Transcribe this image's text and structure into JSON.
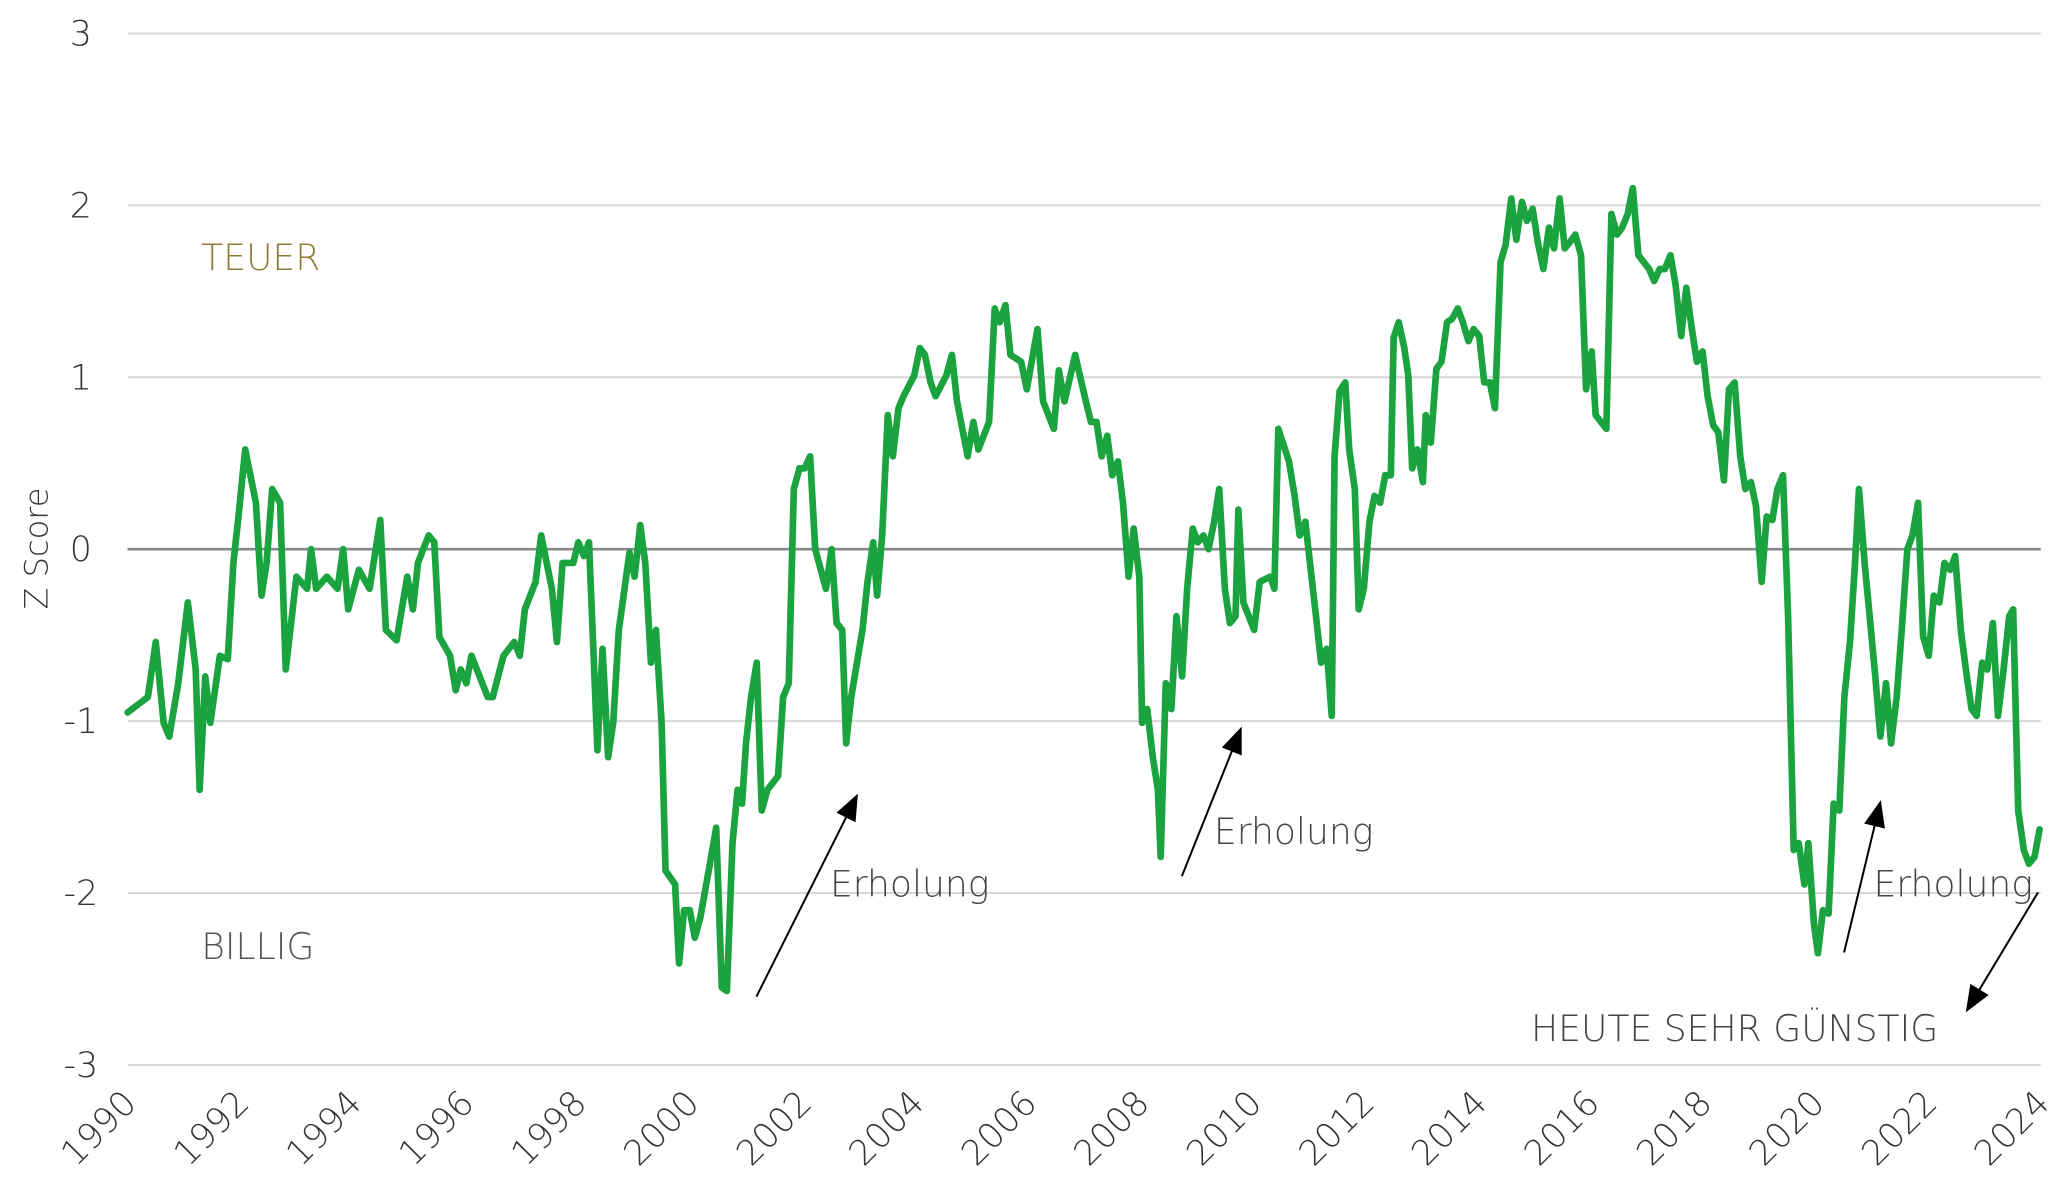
{
  "chart_data": {
    "type": "line",
    "y_label": "Z Score",
    "color": "#1aa33f",
    "annotations": [
      "TEUER",
      "BILLIG",
      "Erholung",
      "Erholung",
      "Erholung",
      "HEUTE SEHR GÜNSTIG"
    ],
    "xlim": [
      1990,
      2024
    ],
    "xticks": [
      1990,
      1992,
      1994,
      1996,
      1998,
      2000,
      2002,
      2004,
      2006,
      2008,
      2010,
      2012,
      2014,
      2016,
      2018,
      2020,
      2022,
      2024
    ],
    "ylim": [
      -3,
      3
    ],
    "yticks": [
      -3,
      -2,
      -1,
      0,
      1,
      2,
      3
    ],
    "grid": true,
    "x": [
      1990.0,
      1990.36,
      1990.5,
      1990.64,
      1990.74,
      1990.9,
      1991.07,
      1991.21,
      1991.28,
      1991.38,
      1991.47,
      1991.64,
      1991.78,
      1991.88,
      1991.97,
      1992.09,
      1992.28,
      1992.38,
      1992.47,
      1992.57,
      1992.71,
      1992.81,
      1993.0,
      1993.19,
      1993.26,
      1993.35,
      1993.54,
      1993.73,
      1993.83,
      1993.92,
      1994.11,
      1994.3,
      1994.49,
      1994.59,
      1994.78,
      1994.97,
      1995.07,
      1995.16,
      1995.35,
      1995.45,
      1995.54,
      1995.73,
      1995.83,
      1995.92,
      1996.02,
      1996.11,
      1996.4,
      1996.49,
      1996.68,
      1996.87,
      1996.97,
      1997.06,
      1997.25,
      1997.35,
      1997.54,
      1997.63,
      1997.73,
      1997.92,
      1998.01,
      1998.11,
      1998.2,
      1998.35,
      1998.44,
      1998.54,
      1998.63,
      1998.73,
      1998.92,
      1999.01,
      1999.11,
      1999.2,
      1999.3,
      1999.39,
      1999.49,
      1999.56,
      1999.73,
      1999.8,
      1999.89,
      1999.99,
      2000.08,
      2000.18,
      2000.37,
      2000.46,
      2000.56,
      2000.65,
      2000.75,
      2000.84,
      2000.92,
      2000.99,
      2001.08,
      2001.18,
      2001.27,
      2001.37,
      2001.56,
      2001.65,
      2001.75,
      2001.84,
      2001.94,
      2002.03,
      2002.13,
      2002.22,
      2002.41,
      2002.51,
      2002.6,
      2002.7,
      2002.77,
      2002.86,
      2003.06,
      2003.15,
      2003.25,
      2003.32,
      2003.41,
      2003.51,
      2003.6,
      2003.7,
      2003.79,
      2003.98,
      2004.08,
      2004.17,
      2004.27,
      2004.36,
      2004.55,
      2004.65,
      2004.74,
      2004.93,
      2005.03,
      2005.12,
      2005.31,
      2005.41,
      2005.5,
      2005.6,
      2005.69,
      2005.88,
      2005.98,
      2006.17,
      2006.27,
      2006.46,
      2006.55,
      2006.65,
      2006.84,
      2007.03,
      2007.12,
      2007.22,
      2007.31,
      2007.41,
      2007.5,
      2007.6,
      2007.69,
      2007.79,
      2007.88,
      2007.98,
      2008.03,
      2008.12,
      2008.22,
      2008.31,
      2008.36,
      2008.45,
      2008.55,
      2008.64,
      2008.74,
      2008.83,
      2008.93,
      2009.02,
      2009.12,
      2009.21,
      2009.31,
      2009.4,
      2009.5,
      2009.59,
      2009.69,
      2009.74,
      2009.83,
      2010.02,
      2010.12,
      2010.31,
      2010.38,
      2010.45,
      2010.64,
      2010.74,
      2010.83,
      2010.93,
      2011.12,
      2011.21,
      2011.31,
      2011.4,
      2011.45,
      2011.54,
      2011.64,
      2011.71,
      2011.81,
      2011.88,
      2011.97,
      2012.07,
      2012.16,
      2012.26,
      2012.35,
      2012.45,
      2012.5,
      2012.59,
      2012.69,
      2012.76,
      2012.83,
      2012.92,
      2013.02,
      2013.07,
      2013.16,
      2013.26,
      2013.35,
      2013.45,
      2013.54,
      2013.64,
      2013.73,
      2013.83,
      2013.92,
      2014.02,
      2014.11,
      2014.21,
      2014.3,
      2014.4,
      2014.49,
      2014.59,
      2014.68,
      2014.78,
      2014.87,
      2014.97,
      2015.06,
      2015.16,
      2015.26,
      2015.35,
      2015.45,
      2015.54,
      2015.64,
      2015.73,
      2015.83,
      2015.92,
      2016.02,
      2016.09,
      2016.28,
      2016.37,
      2016.47,
      2016.56,
      2016.66,
      2016.75,
      2016.85,
      2017.04,
      2017.13,
      2017.23,
      2017.32,
      2017.42,
      2017.51,
      2017.61,
      2017.7,
      2017.8,
      2017.89,
      2017.99,
      2018.08,
      2018.18,
      2018.27,
      2018.37,
      2018.46,
      2018.56,
      2018.66,
      2018.75,
      2018.85,
      2018.94,
      2019.04,
      2019.13,
      2019.23,
      2019.32,
      2019.42,
      2019.51,
      2019.61,
      2019.7,
      2019.8,
      2019.87,
      2019.97,
      2020.04,
      2020.13,
      2020.23,
      2020.32,
      2020.42,
      2020.51,
      2020.61,
      2020.7,
      2020.77,
      2020.87,
      2020.96,
      2021.06,
      2021.15,
      2021.25,
      2021.34,
      2021.44,
      2021.53,
      2021.63,
      2021.72,
      2021.82,
      2021.91,
      2022.01,
      2022.1,
      2022.2,
      2022.29,
      2022.39,
      2022.48,
      2022.58,
      2022.67,
      2022.77,
      2022.86,
      2022.96,
      2023.05,
      2023.15,
      2023.24,
      2023.34,
      2023.44,
      2023.51,
      2023.6,
      2023.7,
      2023.79,
      2023.89,
      2023.98
    ],
    "values": [
      -0.95,
      -0.86,
      -0.54,
      -1.01,
      -1.09,
      -0.78,
      -0.31,
      -0.7,
      -1.4,
      -0.74,
      -1.01,
      -0.62,
      -0.64,
      -0.08,
      0.19,
      0.58,
      0.27,
      -0.27,
      -0.08,
      0.35,
      0.27,
      -0.7,
      -0.16,
      -0.23,
      0.0,
      -0.23,
      -0.16,
      -0.23,
      0.0,
      -0.35,
      -0.12,
      -0.23,
      0.17,
      -0.47,
      -0.53,
      -0.16,
      -0.35,
      -0.08,
      0.08,
      0.04,
      -0.51,
      -0.62,
      -0.82,
      -0.7,
      -0.78,
      -0.62,
      -0.86,
      -0.86,
      -0.62,
      -0.54,
      -0.62,
      -0.35,
      -0.19,
      0.08,
      -0.23,
      -0.54,
      -0.08,
      -0.08,
      0.04,
      -0.04,
      0.04,
      -1.17,
      -0.58,
      -1.21,
      -1.01,
      -0.47,
      -0.02,
      -0.16,
      0.14,
      -0.08,
      -0.66,
      -0.47,
      -1.01,
      -1.87,
      -1.95,
      -2.41,
      -2.1,
      -2.1,
      -2.26,
      -2.14,
      -1.79,
      -1.62,
      -2.55,
      -2.57,
      -1.71,
      -1.4,
      -1.48,
      -1.13,
      -0.86,
      -0.66,
      -1.52,
      -1.4,
      -1.32,
      -0.86,
      -0.78,
      0.35,
      0.47,
      0.47,
      0.54,
      0.0,
      -0.23,
      0.0,
      -0.43,
      -0.47,
      -1.13,
      -0.86,
      -0.47,
      -0.19,
      0.04,
      -0.27,
      0.08,
      0.78,
      0.54,
      0.82,
      0.89,
      1.01,
      1.17,
      1.13,
      0.97,
      0.89,
      1.01,
      1.13,
      0.86,
      0.54,
      0.74,
      0.58,
      0.74,
      1.4,
      1.32,
      1.42,
      1.13,
      1.09,
      0.93,
      1.28,
      0.86,
      0.7,
      1.04,
      0.86,
      1.13,
      0.86,
      0.74,
      0.74,
      0.54,
      0.66,
      0.43,
      0.51,
      0.27,
      -0.16,
      0.12,
      -0.16,
      -1.01,
      -0.93,
      -1.21,
      -1.4,
      -1.79,
      -0.78,
      -0.93,
      -0.39,
      -0.74,
      -0.23,
      0.12,
      0.04,
      0.08,
      0.0,
      0.16,
      0.35,
      -0.23,
      -0.43,
      -0.39,
      0.23,
      -0.31,
      -0.47,
      -0.19,
      -0.16,
      -0.23,
      0.7,
      0.51,
      0.31,
      0.08,
      0.16,
      -0.39,
      -0.66,
      -0.58,
      -0.97,
      0.54,
      0.92,
      0.97,
      0.58,
      0.35,
      -0.35,
      -0.23,
      0.16,
      0.31,
      0.27,
      0.43,
      0.43,
      1.23,
      1.32,
      1.17,
      1.01,
      0.47,
      0.58,
      0.39,
      0.78,
      0.62,
      1.05,
      1.09,
      1.32,
      1.34,
      1.4,
      1.32,
      1.21,
      1.28,
      1.24,
      0.97,
      0.97,
      0.82,
      1.67,
      1.77,
      2.04,
      1.8,
      2.02,
      1.91,
      1.98,
      1.79,
      1.63,
      1.87,
      1.75,
      2.04,
      1.75,
      1.79,
      1.83,
      1.71,
      0.93,
      1.15,
      0.78,
      0.7,
      1.95,
      1.83,
      1.87,
      1.95,
      2.1,
      1.71,
      1.63,
      1.56,
      1.63,
      1.63,
      1.71,
      1.54,
      1.24,
      1.52,
      1.28,
      1.09,
      1.15,
      0.89,
      0.72,
      0.68,
      0.4,
      0.93,
      0.97,
      0.54,
      0.35,
      0.39,
      0.25,
      -0.19,
      0.19,
      0.17,
      0.35,
      0.43,
      -0.39,
      -1.75,
      -1.71,
      -1.95,
      -1.71,
      -2.18,
      -2.35,
      -2.1,
      -2.12,
      -1.48,
      -1.52,
      -0.86,
      -0.54,
      -0.08,
      0.35,
      -0.08,
      -0.39,
      -0.74,
      -1.09,
      -0.78,
      -1.13,
      -0.86,
      -0.47,
      0.0,
      0.08,
      0.27,
      -0.51,
      -0.62,
      -0.27,
      -0.31,
      -0.08,
      -0.12,
      -0.04,
      -0.47,
      -0.7,
      -0.93,
      -0.97,
      -0.66,
      -0.7,
      -0.43,
      -0.97,
      -0.7,
      -0.39,
      -0.35,
      -1.52,
      -1.75,
      -1.83,
      -1.79,
      -1.63
    ]
  }
}
